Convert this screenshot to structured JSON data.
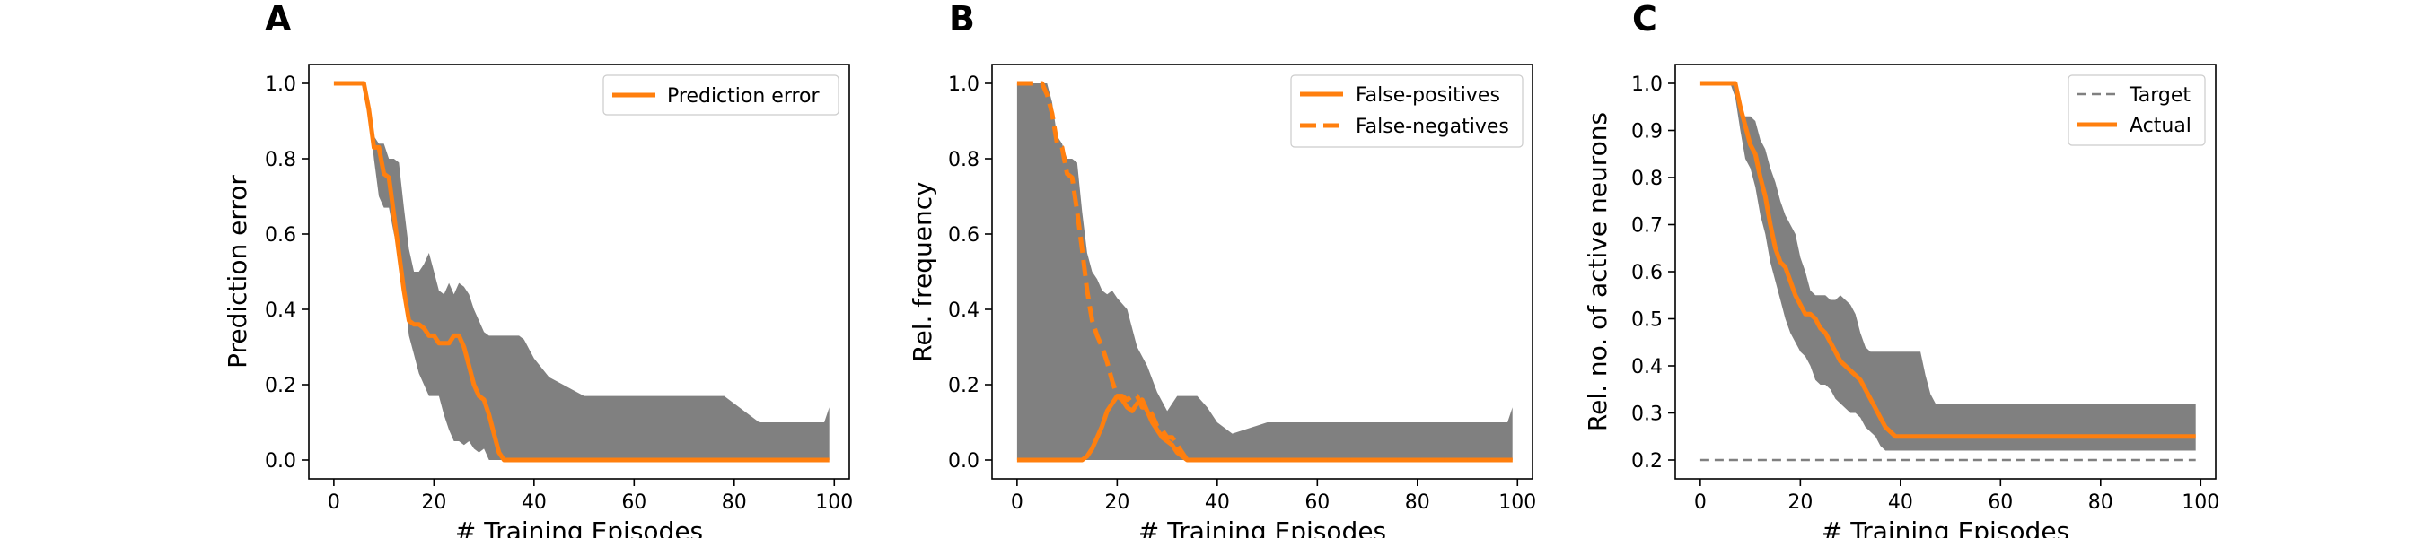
{
  "chart_data": [
    {
      "panel": "A",
      "type": "line",
      "xlabel": "# Training Episodes",
      "ylabel": "Prediction error",
      "xlim": [
        -5,
        103
      ],
      "ylim": [
        -0.05,
        1.05
      ],
      "xticks": [
        0,
        20,
        40,
        60,
        80,
        100
      ],
      "yticks": [
        0.0,
        0.2,
        0.4,
        0.6,
        0.8,
        1.0
      ],
      "ytick_decimals": 1,
      "legend_position": "top-right",
      "band": {
        "x": [
          0,
          6,
          7,
          8,
          9,
          10,
          11,
          12,
          13,
          14,
          15,
          16,
          17,
          18,
          19,
          20,
          21,
          22,
          23,
          24,
          25,
          26,
          27,
          28,
          29,
          30,
          31,
          32,
          33,
          35,
          37,
          38,
          40,
          43,
          50,
          55,
          70,
          78,
          85,
          95,
          98,
          99
        ],
        "upper": [
          1.0,
          1.0,
          0.93,
          0.86,
          0.84,
          0.84,
          0.8,
          0.8,
          0.79,
          0.67,
          0.56,
          0.5,
          0.5,
          0.52,
          0.55,
          0.5,
          0.45,
          0.44,
          0.47,
          0.44,
          0.47,
          0.46,
          0.44,
          0.4,
          0.37,
          0.34,
          0.33,
          0.33,
          0.33,
          0.33,
          0.33,
          0.32,
          0.27,
          0.22,
          0.17,
          0.17,
          0.17,
          0.17,
          0.1,
          0.1,
          0.1,
          0.14
        ],
        "lower": [
          1.0,
          1.0,
          0.93,
          0.8,
          0.7,
          0.67,
          0.67,
          0.6,
          0.55,
          0.45,
          0.33,
          0.28,
          0.23,
          0.2,
          0.17,
          0.17,
          0.17,
          0.12,
          0.08,
          0.05,
          0.05,
          0.04,
          0.05,
          0.03,
          0.02,
          0.03,
          0.0,
          0.0,
          0.0,
          0.0,
          0.0,
          0.0,
          0.0,
          0.0,
          0.0,
          0.0,
          0.0,
          0.0,
          0.0,
          0.0,
          0.0,
          0.0
        ]
      },
      "series": [
        {
          "name": "Prediction error",
          "style": "solid",
          "x": [
            0,
            6,
            7,
            8,
            9,
            10,
            11,
            12,
            13,
            14,
            15,
            16,
            17,
            18,
            19,
            20,
            21,
            22,
            23,
            24,
            25,
            26,
            27,
            28,
            29,
            30,
            31,
            32,
            33,
            34,
            35,
            36,
            37,
            99
          ],
          "y": [
            1.0,
            1.0,
            0.93,
            0.83,
            0.83,
            0.76,
            0.75,
            0.65,
            0.55,
            0.45,
            0.37,
            0.36,
            0.36,
            0.35,
            0.33,
            0.33,
            0.31,
            0.31,
            0.31,
            0.33,
            0.33,
            0.3,
            0.25,
            0.2,
            0.17,
            0.16,
            0.12,
            0.07,
            0.02,
            0.0,
            0.0,
            0.0,
            0.0,
            0.0
          ]
        }
      ]
    },
    {
      "panel": "B",
      "type": "line",
      "xlabel": "# Training Episodes",
      "ylabel": "Rel. frequency",
      "xlim": [
        -5,
        103
      ],
      "ylim": [
        -0.05,
        1.05
      ],
      "xticks": [
        0,
        20,
        40,
        60,
        80,
        100
      ],
      "yticks": [
        0.0,
        0.2,
        0.4,
        0.6,
        0.8,
        1.0
      ],
      "ytick_decimals": 1,
      "legend_position": "top-right",
      "band": {
        "x": [
          0,
          5,
          6,
          7,
          8,
          9,
          10,
          11,
          12,
          13,
          14,
          15,
          16,
          17,
          18,
          19,
          20,
          22,
          24,
          26,
          28,
          30,
          32,
          34,
          36,
          38,
          40,
          43,
          50,
          55,
          70,
          78,
          85,
          95,
          98,
          99
        ],
        "upper": [
          1.0,
          1.0,
          1.0,
          0.95,
          0.86,
          0.84,
          0.8,
          0.8,
          0.79,
          0.66,
          0.55,
          0.5,
          0.48,
          0.45,
          0.44,
          0.45,
          0.43,
          0.4,
          0.3,
          0.25,
          0.18,
          0.13,
          0.17,
          0.17,
          0.17,
          0.14,
          0.1,
          0.07,
          0.1,
          0.1,
          0.1,
          0.1,
          0.1,
          0.1,
          0.1,
          0.14
        ],
        "lower": [
          0.0,
          0.0,
          0.0,
          0.0,
          0.0,
          0.0,
          0.0,
          0.0,
          0.0,
          0.0,
          0.0,
          0.0,
          0.0,
          0.0,
          0.0,
          0.0,
          0.0,
          0.0,
          0.0,
          0.0,
          0.0,
          0.0,
          0.0,
          0.0,
          0.0,
          0.0,
          0.0,
          0.0,
          0.0,
          0.0,
          0.0,
          0.0,
          0.0,
          0.0,
          0.0,
          0.0
        ]
      },
      "series": [
        {
          "name": "False-positives",
          "style": "solid",
          "x": [
            0,
            13,
            14,
            15,
            16,
            17,
            18,
            19,
            20,
            21,
            22,
            23,
            24,
            25,
            26,
            27,
            28,
            29,
            30,
            31,
            32,
            33,
            34,
            35,
            36,
            99
          ],
          "y": [
            0.0,
            0.0,
            0.01,
            0.03,
            0.06,
            0.09,
            0.13,
            0.15,
            0.17,
            0.16,
            0.14,
            0.13,
            0.15,
            0.16,
            0.13,
            0.1,
            0.08,
            0.06,
            0.05,
            0.04,
            0.02,
            0.01,
            0.0,
            0.0,
            0.0,
            0.0
          ]
        },
        {
          "name": "False-negatives",
          "style": "dashed",
          "x": [
            0,
            5,
            6,
            7,
            8,
            9,
            10,
            11,
            12,
            13,
            14,
            15,
            16,
            17,
            18,
            19,
            20,
            21,
            22,
            23,
            24,
            25,
            26,
            27,
            28,
            29,
            30,
            31,
            32,
            33,
            34,
            35,
            36,
            99
          ],
          "y": [
            1.0,
            1.0,
            0.97,
            0.92,
            0.84,
            0.83,
            0.76,
            0.75,
            0.66,
            0.56,
            0.45,
            0.37,
            0.33,
            0.3,
            0.26,
            0.21,
            0.17,
            0.17,
            0.16,
            0.17,
            0.17,
            0.14,
            0.14,
            0.12,
            0.09,
            0.08,
            0.06,
            0.06,
            0.04,
            0.02,
            0.0,
            0.0,
            0.0,
            0.0
          ]
        }
      ]
    },
    {
      "panel": "C",
      "type": "line",
      "xlabel": "# Training Episodes",
      "ylabel": "Rel. no. of active neurons",
      "xlim": [
        -5,
        103
      ],
      "ylim": [
        0.16,
        1.04
      ],
      "xticks": [
        0,
        20,
        40,
        60,
        80,
        100
      ],
      "yticks": [
        0.2,
        0.3,
        0.4,
        0.5,
        0.6,
        0.7,
        0.8,
        0.9,
        1.0
      ],
      "ytick_decimals": 1,
      "legend_position": "top-right",
      "band": {
        "x": [
          0,
          6,
          7,
          8,
          9,
          10,
          11,
          12,
          13,
          14,
          15,
          16,
          17,
          18,
          19,
          20,
          21,
          22,
          23,
          24,
          25,
          26,
          27,
          28,
          29,
          30,
          31,
          32,
          33,
          34,
          35,
          36,
          37,
          38,
          39,
          40,
          41,
          42,
          43,
          44,
          45,
          46,
          47,
          48,
          49,
          99
        ],
        "upper": [
          1.0,
          1.0,
          1.0,
          0.94,
          0.93,
          0.93,
          0.92,
          0.88,
          0.86,
          0.82,
          0.79,
          0.75,
          0.72,
          0.7,
          0.68,
          0.63,
          0.6,
          0.56,
          0.55,
          0.55,
          0.55,
          0.54,
          0.54,
          0.55,
          0.54,
          0.53,
          0.51,
          0.47,
          0.44,
          0.43,
          0.43,
          0.43,
          0.43,
          0.43,
          0.43,
          0.43,
          0.43,
          0.43,
          0.43,
          0.43,
          0.38,
          0.34,
          0.32,
          0.32,
          0.32,
          0.32
        ],
        "lower": [
          1.0,
          1.0,
          0.97,
          0.9,
          0.84,
          0.82,
          0.78,
          0.72,
          0.68,
          0.62,
          0.58,
          0.54,
          0.5,
          0.47,
          0.45,
          0.43,
          0.42,
          0.4,
          0.37,
          0.36,
          0.36,
          0.35,
          0.33,
          0.32,
          0.31,
          0.3,
          0.3,
          0.29,
          0.27,
          0.26,
          0.25,
          0.23,
          0.22,
          0.22,
          0.22,
          0.22,
          0.22,
          0.22,
          0.22,
          0.22,
          0.22,
          0.22,
          0.22,
          0.22,
          0.22,
          0.22
        ]
      },
      "series": [
        {
          "name": "Target",
          "style": "thin-dashed",
          "x": [
            0,
            99
          ],
          "y": [
            0.2,
            0.2
          ]
        },
        {
          "name": "Actual",
          "style": "solid",
          "x": [
            0,
            6,
            7,
            8,
            9,
            10,
            11,
            12,
            13,
            14,
            15,
            16,
            17,
            18,
            19,
            20,
            21,
            22,
            23,
            24,
            25,
            26,
            27,
            28,
            29,
            30,
            31,
            32,
            33,
            34,
            35,
            36,
            37,
            38,
            39,
            40,
            41,
            42,
            43,
            44,
            99
          ],
          "y": [
            1.0,
            1.0,
            1.0,
            0.95,
            0.91,
            0.87,
            0.85,
            0.8,
            0.76,
            0.7,
            0.65,
            0.62,
            0.61,
            0.58,
            0.55,
            0.53,
            0.51,
            0.51,
            0.5,
            0.48,
            0.47,
            0.45,
            0.43,
            0.41,
            0.4,
            0.39,
            0.38,
            0.37,
            0.35,
            0.33,
            0.31,
            0.29,
            0.27,
            0.26,
            0.25,
            0.25,
            0.25,
            0.25,
            0.25,
            0.25,
            0.25
          ]
        }
      ]
    }
  ],
  "colors": {
    "line": "#ff7f0e",
    "band": "#808080",
    "target": "#808080",
    "axis": "#000000",
    "legend_border": "#cccccc"
  }
}
